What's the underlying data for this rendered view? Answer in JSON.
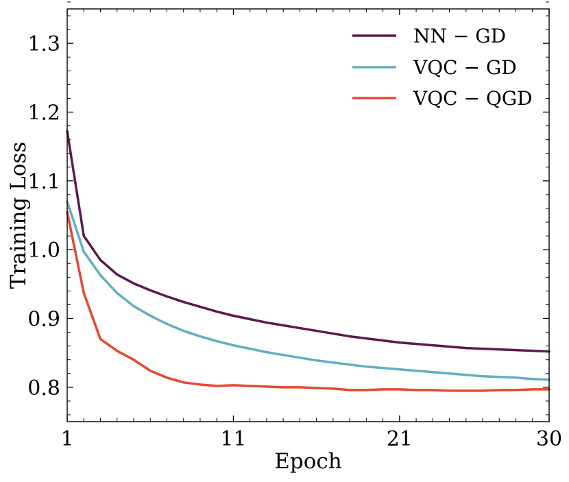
{
  "chart_data": {
    "type": "line",
    "title": "",
    "xlabel": "Epoch",
    "ylabel": "Training Loss",
    "xlim": [
      1,
      30
    ],
    "ylim": [
      0.75,
      1.35
    ],
    "xticks": [
      1,
      11,
      21,
      30
    ],
    "yticks": [
      0.8,
      0.9,
      1.0,
      1.1,
      1.2,
      1.3
    ],
    "ytick_labels": [
      "0.8",
      "0.9",
      "1.0",
      "1.1",
      "1.2",
      "1.3"
    ],
    "grid": false,
    "legend_position": "top-right",
    "x": [
      1,
      2,
      3,
      4,
      5,
      6,
      7,
      8,
      9,
      10,
      11,
      12,
      13,
      14,
      15,
      16,
      17,
      18,
      19,
      20,
      21,
      22,
      23,
      24,
      25,
      26,
      27,
      28,
      29,
      30
    ],
    "series": [
      {
        "name": "NN − GD",
        "color": "#5C1A4E",
        "values": [
          1.172,
          1.02,
          0.985,
          0.964,
          0.951,
          0.941,
          0.932,
          0.924,
          0.917,
          0.91,
          0.904,
          0.899,
          0.894,
          0.89,
          0.886,
          0.882,
          0.878,
          0.874,
          0.871,
          0.868,
          0.865,
          0.863,
          0.861,
          0.859,
          0.857,
          0.856,
          0.855,
          0.854,
          0.853,
          0.852
        ]
      },
      {
        "name": "VQC − GD",
        "color": "#62AEC0",
        "values": [
          1.07,
          0.997,
          0.963,
          0.937,
          0.918,
          0.904,
          0.892,
          0.882,
          0.874,
          0.867,
          0.861,
          0.856,
          0.851,
          0.847,
          0.843,
          0.839,
          0.836,
          0.833,
          0.83,
          0.828,
          0.826,
          0.824,
          0.822,
          0.82,
          0.818,
          0.816,
          0.815,
          0.814,
          0.812,
          0.811
        ]
      },
      {
        "name": "VQC − QGD",
        "color": "#E8472F",
        "values": [
          1.055,
          0.937,
          0.87,
          0.853,
          0.84,
          0.824,
          0.814,
          0.807,
          0.804,
          0.802,
          0.803,
          0.802,
          0.801,
          0.8,
          0.8,
          0.799,
          0.798,
          0.796,
          0.796,
          0.797,
          0.797,
          0.796,
          0.796,
          0.795,
          0.795,
          0.795,
          0.796,
          0.796,
          0.797,
          0.797
        ]
      }
    ]
  }
}
